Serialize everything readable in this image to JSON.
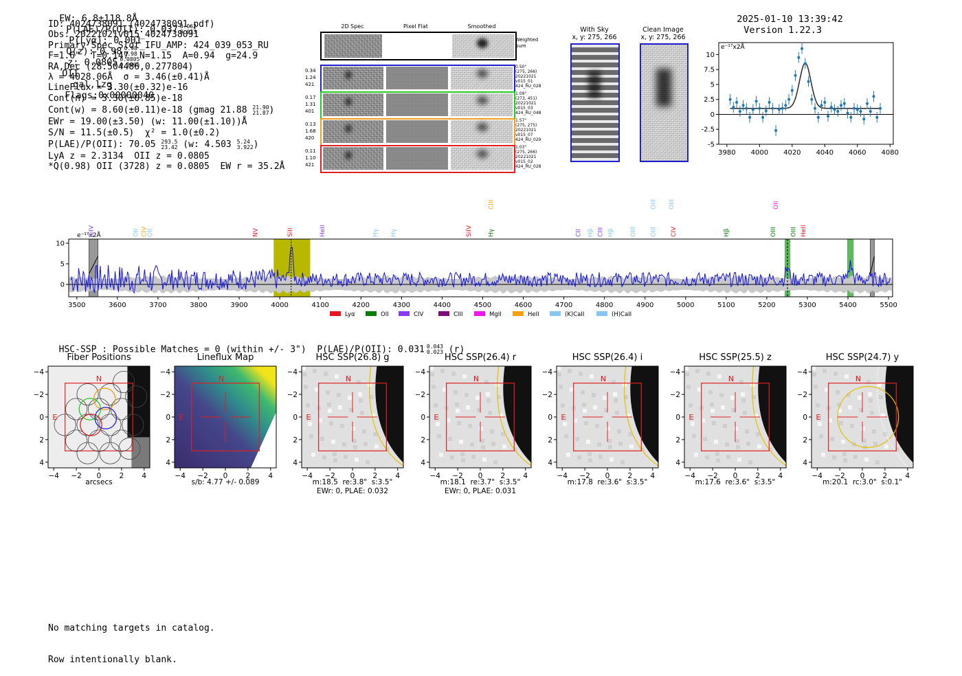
{
  "header": {
    "ew": "EW: 6.8±118.8Å",
    "plae": "P(LAE)/P(OII): 0.037",
    "plae_hi": "0.062",
    "plae_lo": "0.023",
    "plya": "P(Lyα): 0.001",
    "qz": "Q(z): 0.98",
    "qz_hi": "0.98",
    "qz_lo": "0.98",
    "z": "z: 0.0805",
    "z_hi": "0.0805",
    "z_lo": "0.0805",
    "line": "OII",
    "cls": "gal,lzg",
    "flags": "Flags:0x00000040",
    "timestamp": "2025-01-10 13:39:42",
    "version": "Version 1.22.3"
  },
  "info": {
    "id": "ID: 4024738091 (4024738091.pdf)",
    "obs": "Obs: 20221021v015_4024738091",
    "primary": "Primary Spec_Slot_IFU_AMP: 424_039_053_RU",
    "fparams": "F=1.6\"  T=0.147  N=1.15  A=0.94  g=24.9",
    "radec": "RA,Dec (28.504486,0.277804)",
    "lambda": "λ = 4028.06Å  σ = 3.46(±0.41)Å",
    "lineflux": "LineFlux = 3.30(±0.32)e-16",
    "contn": "Cont(n) = 5.30(±0.85)e-18",
    "contw": "Cont(w) = 8.60(±0.11)e-18 (gmag 21.88",
    "contw_hi": "21.90",
    "contw_lo": "21.87",
    "contw_end": ")",
    "ewr": "EWr = 19.00(±3.50) (w: 11.00(±1.10))Å",
    "sn": "S/N = 11.5(±0.5)  χ² = 1.0(±0.2)",
    "plae2": "P(LAE)/P(OII): 70.05",
    "plae2_hi": "293.5",
    "plae2_lo": "23.42",
    "plae2_w": "(w: 4.503",
    "plae2_w_hi": "5.24",
    "plae2_w_lo": "3.922",
    "plae2_end": ")",
    "lya": "LyA z = 2.3134  OII z = 0.0805",
    "q": "*Q(0.98) OII (3728) z = 0.0805  EW r = 35.2Å"
  },
  "spec2d": {
    "col_titles": [
      "2D Spec",
      "Pixel Flat",
      "Smoothed"
    ],
    "weighted_sum": "Weighted Sum",
    "rows": [
      {
        "vals": [
          "0.34",
          "1.24",
          "421"
        ],
        "meta": [
          "0.50\"",
          "(275, 266)",
          "20221021",
          "v015_01",
          "424_RU_028"
        ],
        "color": "#1f1fd0"
      },
      {
        "vals": [
          "0.17",
          "1.31",
          "401"
        ],
        "meta": [
          "1.09\"",
          "(273, 451)",
          "20221021",
          "v015_03",
          "424_RU_048"
        ],
        "color": "#22cc22"
      },
      {
        "vals": [
          "0.13",
          "1.68",
          "420"
        ],
        "meta": [
          "1.57\"",
          "(275, 275)",
          "20221021",
          "v015_07",
          "424_RU_029"
        ],
        "color": "#f0a020"
      },
      {
        "vals": [
          "0.11",
          "1.10",
          "421"
        ],
        "meta": [
          "1.03\"",
          "(275, 266)",
          "20221021",
          "v015_02",
          "424_RU_028"
        ],
        "color": "#e02020"
      }
    ]
  },
  "sky": {
    "with_sky_title": "With Sky",
    "with_sky_xy": "x, y: 275, 266",
    "clean_title": "Clean Image",
    "clean_xy": "x, y: 275, 266"
  },
  "chart_data": [
    {
      "type": "scatter",
      "title": "",
      "ylabel": "e⁻¹⁷x2Å",
      "xlim": [
        3975,
        4082
      ],
      "ylim": [
        -5,
        12
      ],
      "xticks": [
        3980,
        4000,
        4020,
        4040,
        4060,
        4080
      ],
      "yticks": [
        -5.0,
        -2.5,
        0.0,
        2.5,
        5.0,
        7.5,
        10.0
      ],
      "x": [
        3982,
        3984,
        3986,
        3988,
        3990,
        3992,
        3994,
        3996,
        3998,
        4000,
        4002,
        4004,
        4006,
        4008,
        4010,
        4012,
        4014,
        4016,
        4018,
        4020,
        4022,
        4024,
        4026,
        4028,
        4030,
        4032,
        4034,
        4036,
        4038,
        4040,
        4042,
        4044,
        4046,
        4048,
        4050,
        4052,
        4054,
        4056,
        4058,
        4060,
        4062,
        4064,
        4066,
        4068,
        4070,
        4072,
        4074
      ],
      "y": [
        2.5,
        1.2,
        2.0,
        0.5,
        1.5,
        1.0,
        -0.5,
        0.8,
        2.2,
        1.0,
        -0.5,
        0.6,
        2.0,
        1.0,
        -2.7,
        0.8,
        1.0,
        1.5,
        2.5,
        4.0,
        6.5,
        9.5,
        11.0,
        8.5,
        5.5,
        2.5,
        1.0,
        -0.5,
        1.5,
        2.0,
        -0.3,
        1.2,
        0.8,
        0.5,
        1.5,
        1.8,
        0.2,
        -0.5,
        1.0,
        0.8,
        0.5,
        -0.8,
        1.8,
        0.5,
        3.0,
        -0.5,
        1.0
      ],
      "fit_center": 4028,
      "fit_sigma": 3.46,
      "fit_amp": 7.6,
      "fit_base": 1.0
    },
    {
      "type": "line",
      "ylabel": "e⁻¹⁷x2Å",
      "xlim": [
        3480,
        5510
      ],
      "ylim": [
        -3,
        11
      ],
      "xticks": [
        3500,
        3600,
        3700,
        3800,
        3900,
        4000,
        4100,
        4200,
        4300,
        4400,
        4500,
        4600,
        4700,
        4800,
        4900,
        5000,
        5100,
        5200,
        5300,
        5400,
        5500
      ],
      "yticks": [
        0,
        5,
        10
      ],
      "highlight_band": [
        3985,
        4075
      ],
      "emission_line": 4028,
      "hatched": [
        [
          3530,
          3552
        ],
        [
          5455,
          5465
        ]
      ],
      "green_bands": [
        [
          5244,
          5258
        ],
        [
          5398,
          5414
        ]
      ],
      "legend": [
        {
          "name": "Lyα",
          "color": "#e8141e"
        },
        {
          "name": "OII",
          "color": "#0a7a0a"
        },
        {
          "name": "CIV",
          "color": "#8a3aef"
        },
        {
          "name": "CIII",
          "color": "#7a1077"
        },
        {
          "name": "MgII",
          "color": "#ee15ee"
        },
        {
          "name": "HeII",
          "color": "#f5a214"
        },
        {
          "name": "(K)CaII",
          "color": "#87c6ee"
        },
        {
          "name": "(H)CaII",
          "color": "#87c6ee"
        }
      ],
      "line_labels": [
        {
          "name": "SiIV",
          "wave": 3535,
          "color": "#8a3aef",
          "row": 1
        },
        {
          "name": "OII",
          "wave": 3645,
          "color": "#87c6ee",
          "row": 1
        },
        {
          "name": "CIV",
          "wave": 3665,
          "color": "#f5a214",
          "row": 1
        },
        {
          "name": "OII",
          "wave": 3680,
          "color": "#87c6ee",
          "row": 1
        },
        {
          "name": "NV",
          "wave": 3940,
          "color": "#e8141e",
          "row": 1
        },
        {
          "name": "SiII",
          "wave": 4025,
          "color": "#e8141e",
          "row": 1
        },
        {
          "name": "HeII",
          "wave": 4105,
          "color": "#8a3aef",
          "row": 1
        },
        {
          "name": "Hγ",
          "wave": 4235,
          "color": "#87c6ee",
          "row": 1
        },
        {
          "name": "Hγ",
          "wave": 4280,
          "color": "#87c6ee",
          "row": 1
        },
        {
          "name": "SiIV",
          "wave": 4465,
          "color": "#e8141e",
          "row": 1
        },
        {
          "name": "CIII",
          "wave": 4520,
          "color": "#f5a214",
          "row": 0
        },
        {
          "name": "Hγ",
          "wave": 4520,
          "color": "#0a7a0a",
          "row": 1
        },
        {
          "name": "CII",
          "wave": 4735,
          "color": "#8a3aef",
          "row": 1
        },
        {
          "name": "Hβ",
          "wave": 4765,
          "color": "#87c6ee",
          "row": 1
        },
        {
          "name": "CIII",
          "wave": 4790,
          "color": "#8a3aef",
          "row": 1
        },
        {
          "name": "Hβ",
          "wave": 4815,
          "color": "#87c6ee",
          "row": 1
        },
        {
          "name": "OIII",
          "wave": 4870,
          "color": "#87c6ee",
          "row": 1
        },
        {
          "name": "OIII",
          "wave": 4920,
          "color": "#87c6ee",
          "row": 0
        },
        {
          "name": "OIII",
          "wave": 4920,
          "color": "#87c6ee",
          "row": 1
        },
        {
          "name": "OIII",
          "wave": 4965,
          "color": "#87c6ee",
          "row": 0
        },
        {
          "name": "CIV",
          "wave": 4970,
          "color": "#e8141e",
          "row": 1
        },
        {
          "name": "Hβ",
          "wave": 5100,
          "color": "#0a7a0a",
          "row": 1
        },
        {
          "name": "OIII",
          "wave": 5215,
          "color": "#0a7a0a",
          "row": 1
        },
        {
          "name": "OII",
          "wave": 5222,
          "color": "#ee15ee",
          "row": 0
        },
        {
          "name": "OIII",
          "wave": 5265,
          "color": "#0a7a0a",
          "row": 1
        },
        {
          "name": "HeII",
          "wave": 5290,
          "color": "#e8141e",
          "row": 1
        }
      ]
    }
  ],
  "hsc": {
    "summary": "HSC-SSP : Possible Matches = 0 (within +/- 3\")  P(LAE)/P(OII): 0.031",
    "summary_hi": "0.043",
    "summary_lo": "0.023",
    "summary_band": "(r)",
    "ticks": [
      "−4",
      "−2",
      "0",
      "2",
      "4"
    ],
    "yticks": [
      "4",
      "2",
      "0",
      "−2",
      "−4"
    ],
    "compass_n": "N",
    "compass_e": "E",
    "panels": [
      {
        "title": "Fiber Positions",
        "cap1": "arcsecs",
        "cap2": "",
        "type": "fiber"
      },
      {
        "title": "Lineflux Map",
        "cap1": "s/b: 4.77 +/- 0.089",
        "cap2": "",
        "type": "flux"
      },
      {
        "title": "HSC SSP(26.8) g",
        "cap1": "m:18.5  re:3.8\"  s:3.5\"",
        "cap2": "EWr: 0, PLAE: 0.032",
        "type": "img"
      },
      {
        "title": "HSC SSP(26.4) r",
        "cap1": "m:18.1  re:3.7\"  s:3.5\"",
        "cap2": "EWr: 0, PLAE: 0.031",
        "type": "img"
      },
      {
        "title": "HSC SSP(26.4) i",
        "cap1": "m:17.8  re:3.6\"  s:3.5\"",
        "cap2": "",
        "type": "img"
      },
      {
        "title": "HSC SSP(25.5) z",
        "cap1": "m:17.6  re:3.6\"  s:3.5\"",
        "cap2": "",
        "type": "img"
      },
      {
        "title": "HSC SSP(24.7) y",
        "cap1": "m:20.1  rc:3.0\"  s:0.1\"",
        "cap2": "",
        "type": "imgy"
      }
    ]
  },
  "catalog": {
    "line1": "No matching targets in catalog.",
    "line2": "Row intentionally blank."
  },
  "colors": {
    "spectrum": "#1010e0",
    "gauss": "#333333",
    "points": "#1f77b4",
    "band": "#b8b800",
    "green": "#3aa53a",
    "red": "#e02020",
    "yellow": "#e6c000"
  }
}
